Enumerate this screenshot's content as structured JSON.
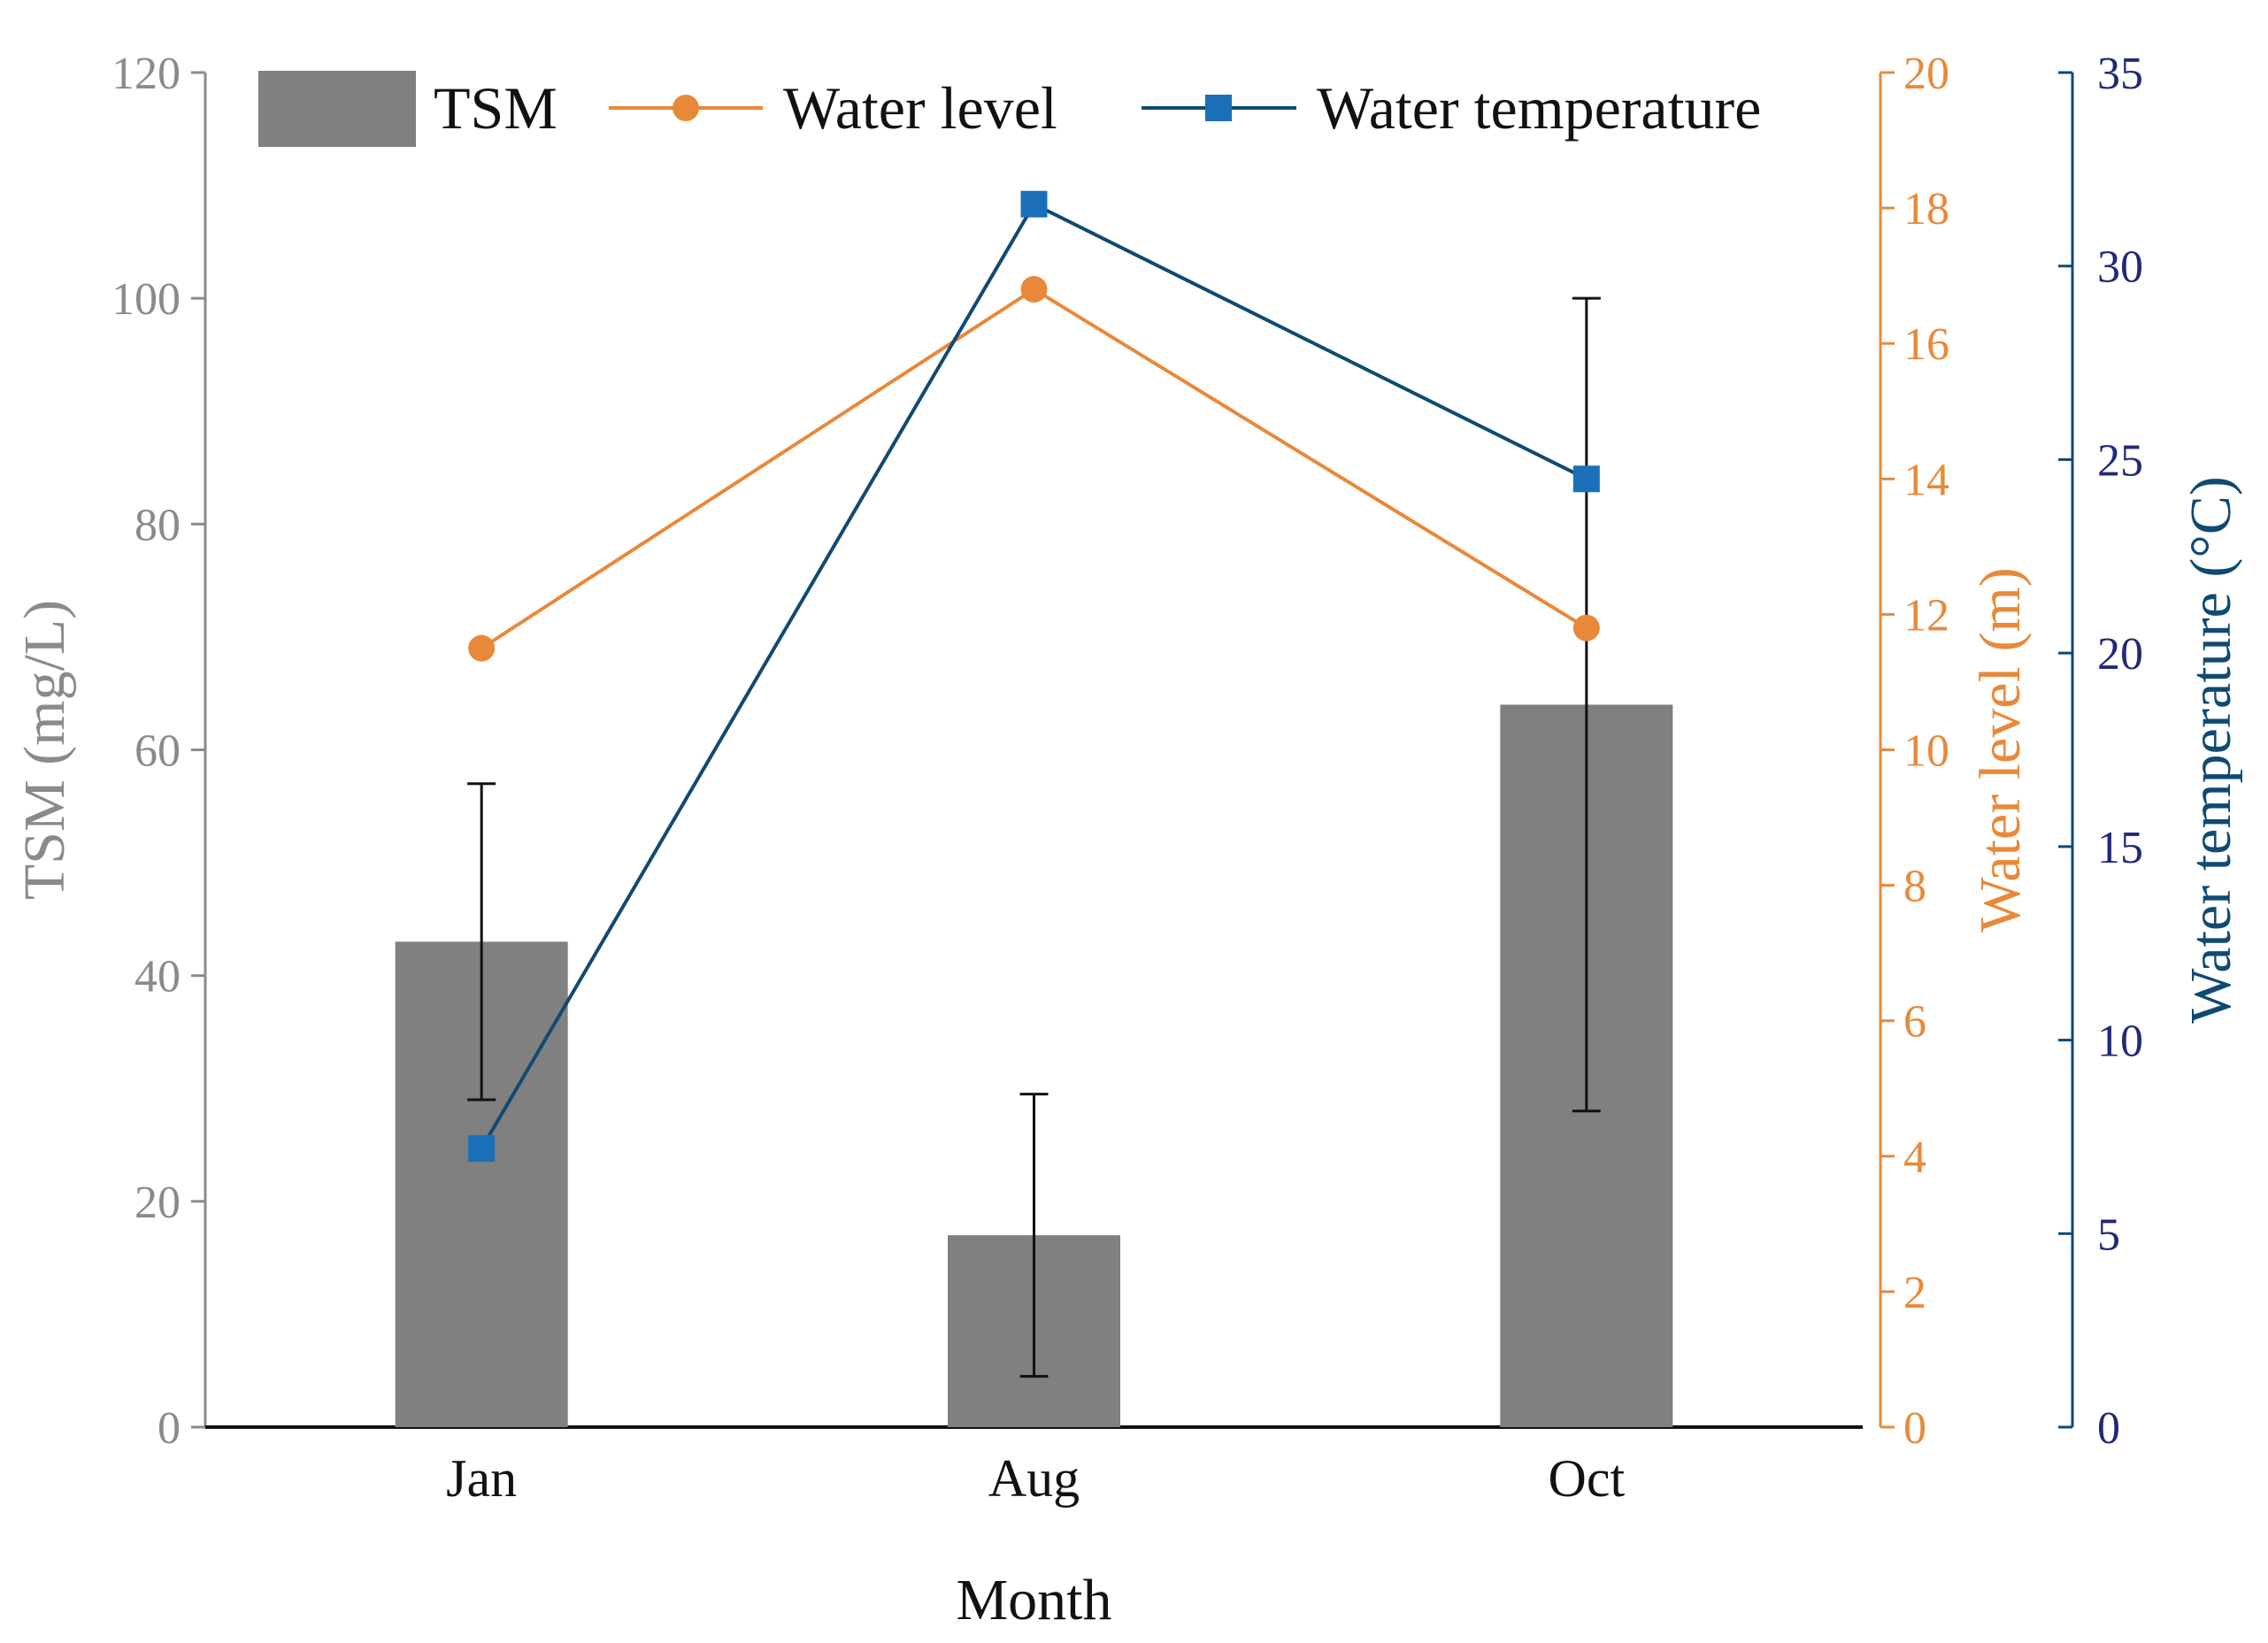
{
  "chart_data": {
    "type": "bar",
    "categories": [
      "Jan",
      "Aug",
      "Oct"
    ],
    "xlabel": "Month",
    "series": [
      {
        "name": "TSM",
        "kind": "bar",
        "axis": "left",
        "values": [
          43,
          17,
          64
        ],
        "error_low": [
          29,
          4.5,
          28
        ],
        "error_high": [
          57,
          29.5,
          100
        ],
        "color": "#808080"
      },
      {
        "name": "Water level",
        "kind": "line",
        "marker": "circle",
        "axis": "right1",
        "values": [
          11.5,
          16.8,
          11.8
        ],
        "color": "#e8893a"
      },
      {
        "name": "Water temperature",
        "kind": "line",
        "marker": "square",
        "axis": "right2",
        "values": [
          7.2,
          31.6,
          24.5
        ],
        "color": "#0f4a72",
        "marker_color": "#1a6fb8"
      }
    ],
    "axes": {
      "left": {
        "label": "TSM (mg/L)",
        "ylim": [
          0,
          120
        ],
        "ticks": [
          "0",
          "20",
          "40",
          "60",
          "80",
          "100",
          "120"
        ],
        "color": "#8a8a8a"
      },
      "right1": {
        "label": "Water level (m)",
        "ylim": [
          0,
          20
        ],
        "ticks": [
          "0",
          "2",
          "4",
          "6",
          "8",
          "10",
          "12",
          "14",
          "16",
          "18",
          "20"
        ],
        "color": "#e8893a"
      },
      "right2": {
        "label": "Water temperature (°C)",
        "ylim": [
          0,
          35
        ],
        "ticks": [
          "0",
          "5",
          "10",
          "15",
          "20",
          "25",
          "30",
          "35"
        ],
        "color": "#0f4a72",
        "tick_color": "#1f2a78"
      }
    },
    "legend": {
      "position": "top"
    },
    "grid": false
  }
}
